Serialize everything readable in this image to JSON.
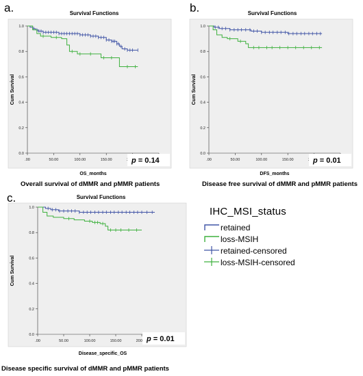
{
  "colors": {
    "retained": "#3f53a5",
    "loss": "#3db03d",
    "plot_bg": "#efefef",
    "axis": "#333333"
  },
  "panels": [
    {
      "letter": "a.",
      "caption": "Overall survival of dMMR and pMMR patients",
      "p_label": "p",
      "p_value": "= 0.14"
    },
    {
      "letter": "b.",
      "caption": "Disease free survival of dMMR and pMMR patients",
      "p_label": "p",
      "p_value": "= 0.01"
    },
    {
      "letter": "c.",
      "caption": "Disease specific survival of dMMR and pMMR patients",
      "p_label": "p",
      "p_value": "= 0.01"
    }
  ],
  "legend": {
    "title": "IHC_MSI_status",
    "items": [
      {
        "label": "retained",
        "kind": "line",
        "color": "retained"
      },
      {
        "label": "loss-MSIH",
        "kind": "line",
        "color": "loss"
      },
      {
        "label": "retained-censored",
        "kind": "cross",
        "color": "retained"
      },
      {
        "label": "loss-MSIH-censored",
        "kind": "cross",
        "color": "loss"
      }
    ]
  },
  "chart_data": [
    {
      "type": "line",
      "title": "Survival Functions",
      "xlabel": "OS_months",
      "ylabel": "Cum Survival",
      "xlim": [
        0,
        250
      ],
      "ylim": [
        0,
        1.0
      ],
      "x_ticks": [
        ".00",
        "50.00",
        "100.00",
        "150.00",
        "200.00",
        "250.00"
      ],
      "y_ticks": [
        "0.0",
        "0.2",
        "0.4",
        "0.6",
        "0.8",
        "1.0"
      ],
      "series": [
        {
          "name": "retained",
          "color": "retained",
          "x": [
            0,
            5,
            10,
            15,
            20,
            30,
            45,
            60,
            80,
            100,
            120,
            135,
            150,
            160,
            170,
            175,
            180,
            190,
            210
          ],
          "y": [
            1.0,
            0.99,
            0.98,
            0.97,
            0.96,
            0.95,
            0.95,
            0.94,
            0.94,
            0.93,
            0.92,
            0.91,
            0.89,
            0.88,
            0.86,
            0.84,
            0.82,
            0.81,
            0.81
          ],
          "censored_x": [
            12,
            18,
            22,
            26,
            30,
            35,
            40,
            45,
            50,
            55,
            60,
            65,
            70,
            75,
            80,
            85,
            90,
            95,
            100,
            105,
            110,
            115,
            120,
            125,
            130,
            135,
            140,
            145,
            150,
            155,
            160,
            163,
            166,
            170,
            173,
            178,
            185,
            190,
            195,
            200,
            210
          ]
        },
        {
          "name": "loss-MSIH",
          "color": "loss",
          "x": [
            0,
            10,
            18,
            25,
            45,
            65,
            75,
            80,
            95,
            135,
            140,
            170,
            175,
            210
          ],
          "y": [
            1.0,
            0.97,
            0.94,
            0.92,
            0.91,
            0.9,
            0.85,
            0.8,
            0.78,
            0.78,
            0.75,
            0.75,
            0.68,
            0.68
          ],
          "censored_x": [
            30,
            55,
            85,
            100,
            120,
            145,
            160,
            190,
            205
          ]
        }
      ]
    },
    {
      "type": "line",
      "title": "Survival Functions",
      "xlabel": "DFS_months",
      "ylabel": "Cum Survival",
      "xlim": [
        0,
        250
      ],
      "ylim": [
        0,
        1.0
      ],
      "x_ticks": [
        ".00",
        "50.00",
        "100.00",
        "150.00",
        "200.00",
        "250.00"
      ],
      "y_ticks": [
        "0.0",
        "0.2",
        "0.4",
        "0.6",
        "0.8",
        "1.0"
      ],
      "series": [
        {
          "name": "retained",
          "color": "retained",
          "x": [
            0,
            10,
            20,
            40,
            60,
            80,
            100,
            120,
            150,
            215
          ],
          "y": [
            1.0,
            0.99,
            0.98,
            0.97,
            0.97,
            0.96,
            0.95,
            0.95,
            0.94,
            0.94
          ],
          "censored_x": [
            12,
            18,
            25,
            32,
            40,
            48,
            55,
            62,
            70,
            78,
            85,
            92,
            100,
            107,
            115,
            122,
            130,
            137,
            145,
            152,
            160,
            167,
            175,
            182,
            190,
            197,
            205,
            212
          ]
        },
        {
          "name": "loss-MSIH",
          "color": "loss",
          "x": [
            0,
            8,
            15,
            25,
            35,
            55,
            70,
            75,
            215
          ],
          "y": [
            1.0,
            0.97,
            0.93,
            0.91,
            0.9,
            0.88,
            0.86,
            0.83,
            0.83
          ],
          "censored_x": [
            40,
            60,
            85,
            95,
            110,
            120,
            135,
            150,
            165,
            180,
            195,
            210
          ]
        }
      ]
    },
    {
      "type": "line",
      "title": "Survival Functions",
      "xlabel": "Disease_specific_OS",
      "ylabel": "Cum Survival",
      "xlim": [
        0,
        250
      ],
      "ylim": [
        0,
        1.0
      ],
      "x_ticks": [
        ".00",
        "50.00",
        "100.00",
        "150.00",
        "200.00",
        "250.00"
      ],
      "y_ticks": [
        "0.0",
        "0.2",
        "0.4",
        "0.6",
        "0.8",
        "1.0"
      ],
      "series": [
        {
          "name": "retained",
          "color": "retained",
          "x": [
            0,
            15,
            25,
            40,
            60,
            80,
            100,
            120,
            150,
            225
          ],
          "y": [
            1.0,
            0.99,
            0.98,
            0.97,
            0.97,
            0.96,
            0.96,
            0.96,
            0.96,
            0.96
          ],
          "censored_x": [
            20,
            28,
            35,
            42,
            50,
            58,
            65,
            72,
            80,
            88,
            95,
            102,
            110,
            117,
            125,
            132,
            140,
            147,
            155,
            162,
            170,
            177,
            185,
            192,
            200,
            210,
            220
          ]
        },
        {
          "name": "loss-MSIH",
          "color": "loss",
          "x": [
            0,
            10,
            18,
            30,
            50,
            70,
            90,
            105,
            120,
            130,
            135,
            200
          ],
          "y": [
            1.0,
            0.96,
            0.93,
            0.92,
            0.91,
            0.9,
            0.89,
            0.88,
            0.87,
            0.85,
            0.82,
            0.82
          ],
          "censored_x": [
            60,
            100,
            110,
            115,
            125,
            140,
            150,
            160,
            175,
            190
          ]
        }
      ]
    }
  ]
}
